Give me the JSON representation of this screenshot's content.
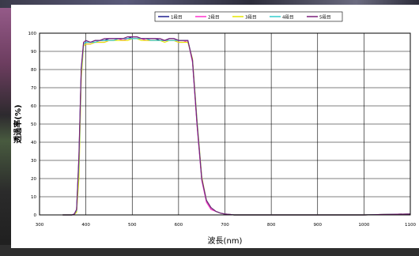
{
  "chart_data": {
    "type": "line",
    "xlabel": "波長(nm)",
    "ylabel": "透過率(%)",
    "xlim": [
      300,
      1100
    ],
    "ylim": [
      0,
      100
    ],
    "xticks": [
      "300",
      "400",
      "500",
      "600",
      "700",
      "800",
      "900",
      "1000",
      "1100"
    ],
    "yticks": [
      "0",
      "10",
      "20",
      "30",
      "40",
      "50",
      "60",
      "70",
      "80",
      "90",
      "100"
    ],
    "grid": true,
    "legend_position": "top",
    "x": [
      350,
      370,
      375,
      380,
      385,
      390,
      395,
      400,
      410,
      420,
      430,
      440,
      450,
      460,
      470,
      480,
      490,
      500,
      510,
      520,
      530,
      540,
      550,
      560,
      570,
      580,
      590,
      600,
      610,
      620,
      630,
      640,
      650,
      660,
      670,
      680,
      690,
      700,
      720,
      750,
      800,
      850,
      900,
      950,
      1000,
      1050,
      1100
    ],
    "series": [
      {
        "name": "1段目",
        "color": "#1f1f8f",
        "values": [
          0,
          0,
          0.5,
          3,
          30,
          80,
          94,
          95,
          95,
          96,
          96,
          96,
          97,
          97,
          97,
          97,
          97,
          98,
          98,
          97,
          97,
          97,
          97,
          96,
          96,
          97,
          97,
          96,
          96,
          96,
          85,
          50,
          20,
          8,
          4,
          2,
          1,
          0.5,
          0,
          0,
          0,
          0,
          0,
          0,
          0,
          0.3,
          0.5
        ]
      },
      {
        "name": "2段目",
        "color": "#ff33cc",
        "values": [
          0,
          0,
          0.5,
          2,
          25,
          78,
          93,
          94,
          94,
          95,
          95,
          95,
          96,
          96,
          97,
          96,
          97,
          97,
          97,
          97,
          96,
          96,
          96,
          96,
          96,
          96,
          96,
          95,
          95,
          96,
          84,
          49,
          19,
          7,
          3,
          2,
          1,
          0.5,
          0,
          0,
          0,
          0,
          0,
          0,
          0,
          0.3,
          0.5
        ]
      },
      {
        "name": "3段目",
        "color": "#e6e600",
        "values": [
          0,
          0,
          0.3,
          1.5,
          20,
          75,
          93,
          94,
          94,
          95,
          95,
          95,
          96,
          96,
          96,
          96,
          96,
          97,
          97,
          96,
          96,
          96,
          96,
          96,
          95,
          96,
          96,
          95,
          95,
          95,
          86,
          52,
          21,
          8,
          4,
          2,
          1,
          0.5,
          0,
          0,
          0,
          0,
          0,
          0,
          0,
          0.3,
          0.5
        ]
      },
      {
        "name": "4段目",
        "color": "#33cccc",
        "values": [
          0,
          0,
          0.4,
          2.5,
          28,
          79,
          94,
          95,
          95,
          95,
          96,
          96,
          96,
          96,
          97,
          97,
          97,
          97,
          97,
          97,
          97,
          96,
          96,
          96,
          96,
          96,
          96,
          96,
          96,
          96,
          85,
          51,
          20,
          8,
          4,
          2,
          1,
          0.5,
          0,
          0,
          0,
          0,
          0,
          0,
          0,
          0.3,
          0.5
        ]
      },
      {
        "name": "5段目",
        "color": "#7a1f7a",
        "values": [
          0,
          0,
          0.5,
          3,
          32,
          81,
          95,
          96,
          95,
          96,
          96,
          97,
          97,
          97,
          97,
          97,
          98,
          98,
          98,
          97,
          97,
          97,
          97,
          97,
          96,
          97,
          97,
          96,
          96,
          96,
          85,
          50,
          20,
          8,
          4,
          2,
          1,
          0.5,
          0,
          0,
          0,
          0,
          0,
          0,
          0,
          0.3,
          0.5
        ]
      }
    ]
  }
}
